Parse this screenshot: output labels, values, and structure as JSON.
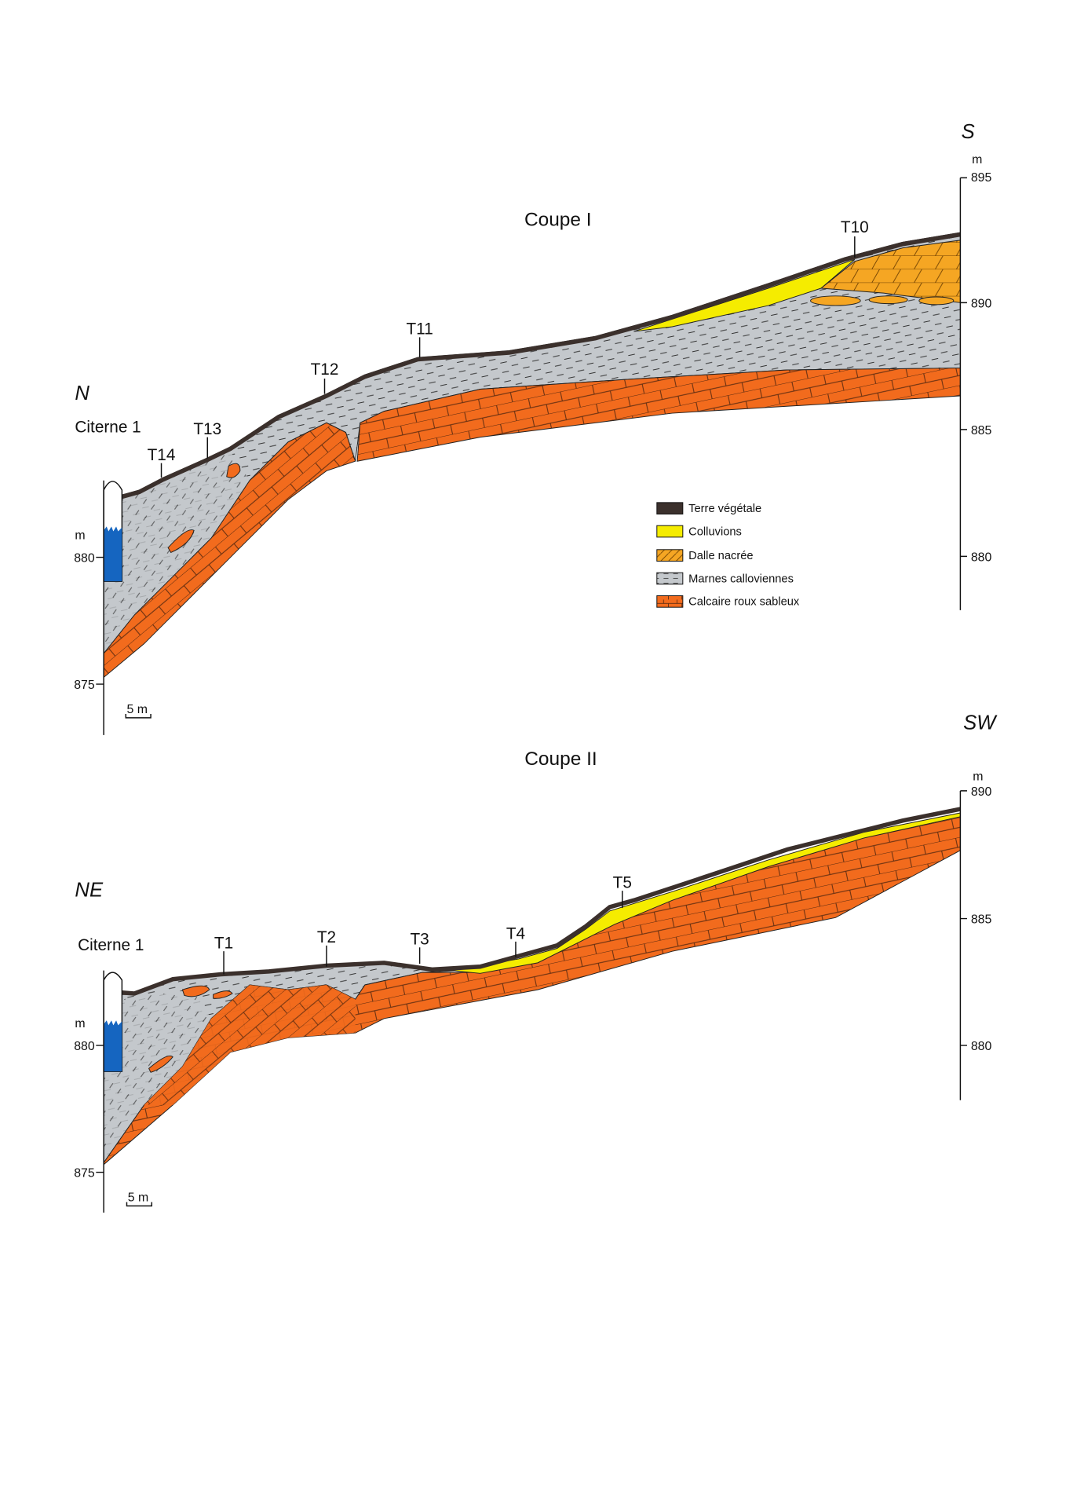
{
  "legend": [
    {
      "label": "Terre végétale",
      "color": "#3b302c"
    },
    {
      "label": "Colluvions",
      "color": "#f5ec00"
    },
    {
      "label": "Dalle nacrée",
      "color": "#f5a623"
    },
    {
      "label": "Marnes calloviennes",
      "color": "#c4c8cc"
    },
    {
      "label": "Calcaire roux sableux",
      "color": "#f26b1d"
    }
  ],
  "water_color": "#1565c0",
  "coupe1": {
    "title": "Coupe I",
    "dir_left": "N",
    "dir_right": "S",
    "well": "Citerne 1",
    "unit": "m",
    "left_ticks": [
      "880",
      "875"
    ],
    "right_ticks": [
      "895",
      "890",
      "885",
      "880"
    ],
    "scale": "5 m",
    "trenches": [
      "T14",
      "T13",
      "T12",
      "T11",
      "T10"
    ]
  },
  "coupe2": {
    "title": "Coupe II",
    "dir_left": "NE",
    "dir_right": "SW",
    "well": "Citerne 1",
    "unit": "m",
    "left_ticks": [
      "880",
      "875"
    ],
    "right_ticks": [
      "890",
      "885",
      "880"
    ],
    "scale": "5 m",
    "trenches": [
      "T1",
      "T2",
      "T3",
      "T4",
      "T5"
    ]
  }
}
